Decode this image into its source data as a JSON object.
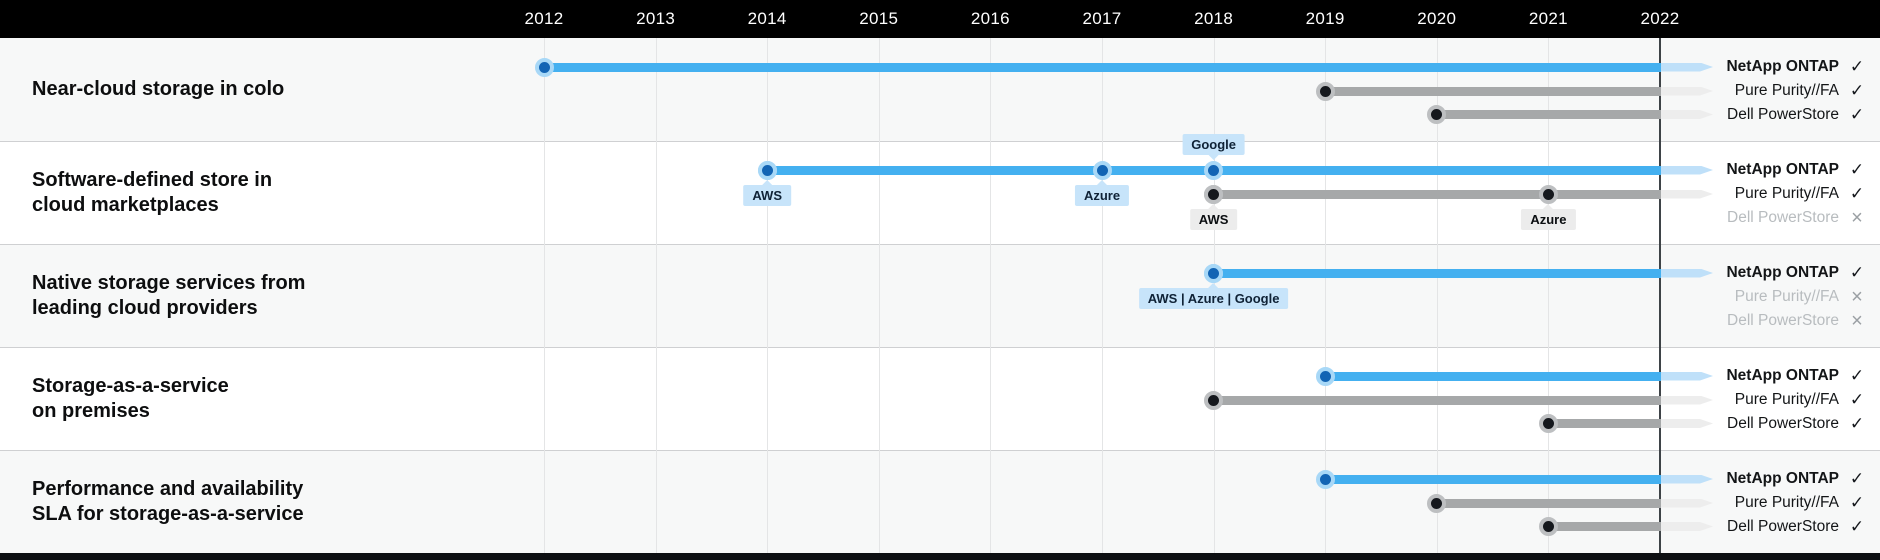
{
  "header": {
    "years": [
      "2012",
      "2013",
      "2014",
      "2015",
      "2016",
      "2017",
      "2018",
      "2019",
      "2020",
      "2021",
      "2022"
    ]
  },
  "chart_data": {
    "type": "bar",
    "variant": "gantt-timeline",
    "x_axis": {
      "ticks": [
        2012,
        2013,
        2014,
        2015,
        2016,
        2017,
        2018,
        2019,
        2020,
        2021,
        2022
      ],
      "current_year_rule": 2022,
      "grid": true
    },
    "marks": {
      "supported": "✓",
      "not_supported": "×"
    },
    "rows": [
      {
        "title_lines": [
          "Near-cloud storage in colo"
        ],
        "products": [
          {
            "name": "NetApp ONTAP",
            "status": "supported",
            "bar": {
              "start_year": 2012,
              "style": "blue"
            },
            "markers": []
          },
          {
            "name": "Pure Purity//FA",
            "status": "supported",
            "bar": {
              "start_year": 2019,
              "style": "gray"
            },
            "markers": []
          },
          {
            "name": "Dell PowerStore",
            "status": "supported",
            "bar": {
              "start_year": 2020,
              "style": "gray"
            },
            "markers": []
          }
        ]
      },
      {
        "title_lines": [
          "Software-defined store in",
          "cloud marketplaces"
        ],
        "products": [
          {
            "name": "NetApp ONTAP",
            "status": "supported",
            "bar": {
              "start_year": 2014,
              "style": "blue"
            },
            "markers": [
              {
                "year": 2014,
                "label": "AWS",
                "placement": "below"
              },
              {
                "year": 2017,
                "label": "Azure",
                "placement": "below"
              },
              {
                "year": 2018,
                "label": "Google",
                "placement": "above"
              }
            ]
          },
          {
            "name": "Pure Purity//FA",
            "status": "supported",
            "bar": {
              "start_year": 2018,
              "style": "gray"
            },
            "markers": [
              {
                "year": 2018,
                "label": "AWS",
                "placement": "below"
              },
              {
                "year": 2021,
                "label": "Azure",
                "placement": "below"
              }
            ]
          },
          {
            "name": "Dell PowerStore",
            "status": "not-supported",
            "bar": null,
            "markers": []
          }
        ]
      },
      {
        "title_lines": [
          "Native storage services from",
          "leading cloud providers"
        ],
        "products": [
          {
            "name": "NetApp ONTAP",
            "status": "supported",
            "bar": {
              "start_year": 2018,
              "style": "blue"
            },
            "markers": [
              {
                "year": 2018,
                "label": "AWS | Azure | Google",
                "placement": "below"
              }
            ]
          },
          {
            "name": "Pure Purity//FA",
            "status": "not-supported",
            "bar": null,
            "markers": []
          },
          {
            "name": "Dell PowerStore",
            "status": "not-supported",
            "bar": null,
            "markers": []
          }
        ]
      },
      {
        "title_lines": [
          "Storage-as-a-service",
          "on premises"
        ],
        "products": [
          {
            "name": "NetApp ONTAP",
            "status": "supported",
            "bar": {
              "start_year": 2019,
              "style": "blue"
            },
            "markers": []
          },
          {
            "name": "Pure Purity//FA",
            "status": "supported",
            "bar": {
              "start_year": 2018,
              "style": "gray"
            },
            "markers": []
          },
          {
            "name": "Dell PowerStore",
            "status": "supported",
            "bar": {
              "start_year": 2021,
              "style": "gray"
            },
            "markers": []
          }
        ]
      },
      {
        "title_lines": [
          "Performance and availability",
          "SLA for storage-as-a-service"
        ],
        "products": [
          {
            "name": "NetApp ONTAP",
            "status": "supported",
            "bar": {
              "start_year": 2019,
              "style": "blue"
            },
            "markers": []
          },
          {
            "name": "Pure Purity//FA",
            "status": "supported",
            "bar": {
              "start_year": 2020,
              "style": "gray"
            },
            "markers": []
          },
          {
            "name": "Dell PowerStore",
            "status": "supported",
            "bar": {
              "start_year": 2021,
              "style": "gray"
            },
            "markers": []
          }
        ]
      }
    ]
  },
  "colors": {
    "header_bg": "#000000",
    "header_text": "#ffffff",
    "row_bg_odd": "#f7f8f8",
    "row_bg_even": "#ffffff",
    "grid_line": "#e4e5e6",
    "row_divider": "#cfd0d2",
    "current_year_line": "#3e4347",
    "netapp_bar": "#44b0f0",
    "netapp_bar_faded": "#bfe0f9",
    "netapp_dot": "#1264b4",
    "netapp_dot_ring": "#a8d8f7",
    "competitor_bar": "#a6a8a9",
    "competitor_bar_faded": "#ededed",
    "competitor_dot": "#15181d",
    "competitor_dot_ring": "#bdbfc1",
    "badge_blue_bg": "#c7e4fa",
    "badge_blue_text": "#0f2236",
    "badge_gray_bg": "#ececec",
    "badge_gray_text": "#0b0e11",
    "label_active": "#131517",
    "label_inactive": "#b8bcbf",
    "check": "#15181d",
    "cross": "#9ba0a4",
    "footer_bg": "#0e1013"
  }
}
